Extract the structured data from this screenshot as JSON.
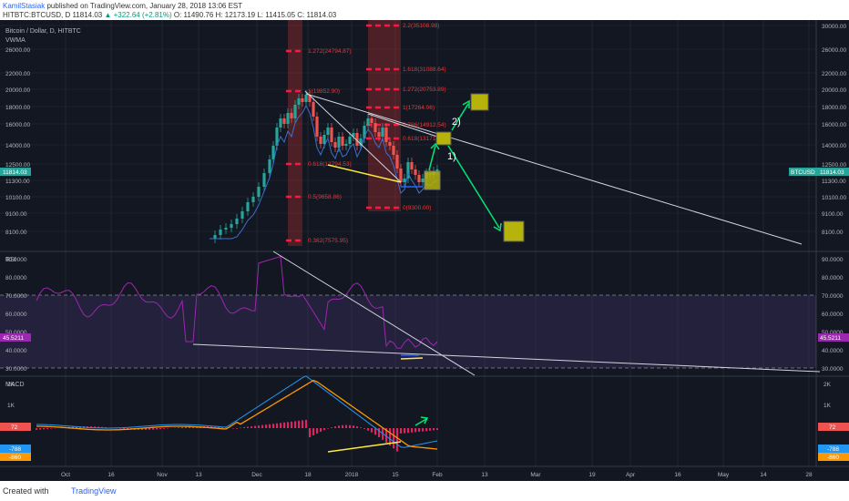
{
  "header": {
    "author": "KamilStasiak",
    "published_text": "published on TradingView.com, January 28, 2018 13:06 EST",
    "symbol_line": "HITBTC:BTCUSD, D 11814.03",
    "change": "▲ +322.64 (+2.81%)",
    "ohlc": "O: 11490.76 H: 12173.19 L: 11415.05 C: 11814.03"
  },
  "footer": {
    "created_with": "Created with",
    "brand": "TradingView"
  },
  "chart_data": [
    {
      "type": "candlestick",
      "title": "Bitcoin / Dollar, D, HITBTC",
      "indicator": "VWMA",
      "x_ticks": [
        "Oct",
        "16",
        "Nov",
        "13",
        "Dec",
        "18",
        "2018",
        "15",
        "Feb",
        "13",
        "Mar",
        "19",
        "Apr",
        "16",
        "May",
        "14",
        "28"
      ],
      "y_ticks": [
        "30000.00",
        "26000.00",
        "22000.00",
        "20000.00",
        "18000.00",
        "16000.00",
        "14000.00",
        "12500.00",
        "11300.00",
        "10100.00",
        "9100.00",
        "8100.00"
      ],
      "price_badge": "11814.03",
      "symbol_badge": "BTCUSD",
      "fib_labels_left": [
        "1.272(24794.87)",
        "1(19852.90)",
        "0.618(12794.53)",
        "0.5(9658.86)",
        "0.382(7575.95)"
      ],
      "fib_labels_right": [
        "2.2(35108.98)",
        "1.618(31088.64)",
        "1.272(20753.89)",
        "1(17264.06)",
        "0.786(14912.54)",
        "0.618(13171.25)",
        "0(9300.00)"
      ],
      "annotations": [
        "1)",
        "2)"
      ]
    },
    {
      "type": "line",
      "title": "RSI",
      "y_ticks": [
        "90.0000",
        "80.0000",
        "70.0000",
        "60.0000",
        "50.0000",
        "40.0000",
        "30.0000"
      ],
      "value_badge": "45.5211",
      "upper_band": 70,
      "lower_band": 30
    },
    {
      "type": "bar",
      "title": "MACD",
      "y_ticks": [
        "2K",
        "1K"
      ],
      "badges": [
        "72",
        "-788",
        "-860"
      ]
    }
  ],
  "colors": {
    "background": "#131722",
    "up": "#26a69a",
    "down": "#ef5350",
    "fib": "#e53935",
    "rsi": "#7e57c2",
    "macd": "#2196f3",
    "signal": "#ff9800",
    "arrow": "#00e676",
    "target": "#b5b30c",
    "trend": "#ffeb3b"
  }
}
